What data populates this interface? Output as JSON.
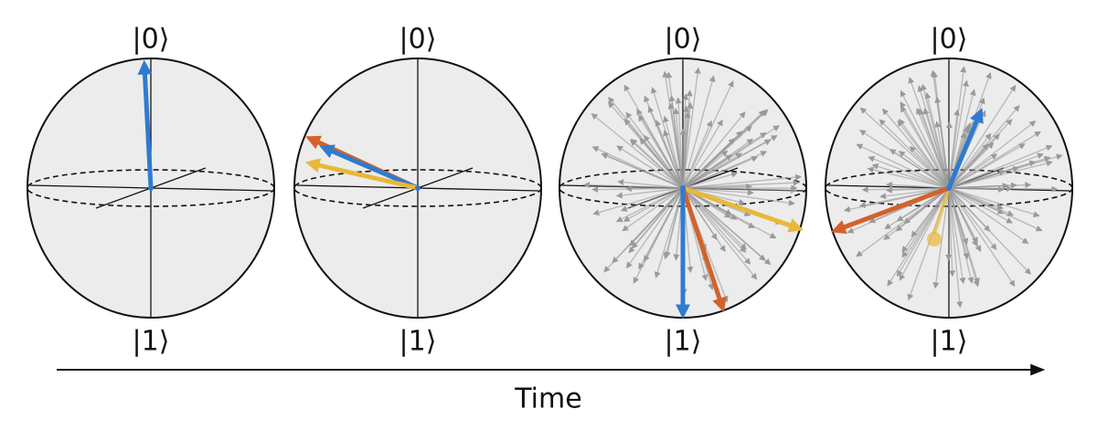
{
  "spheres": [
    {
      "top": "|0⟩",
      "bottom": "|1⟩"
    },
    {
      "top": "|0⟩",
      "bottom": "|1⟩"
    },
    {
      "top": "|0⟩",
      "bottom": "|1⟩"
    },
    {
      "top": "|0⟩",
      "bottom": "|1⟩"
    }
  ],
  "time_axis": {
    "label": "Time"
  }
}
